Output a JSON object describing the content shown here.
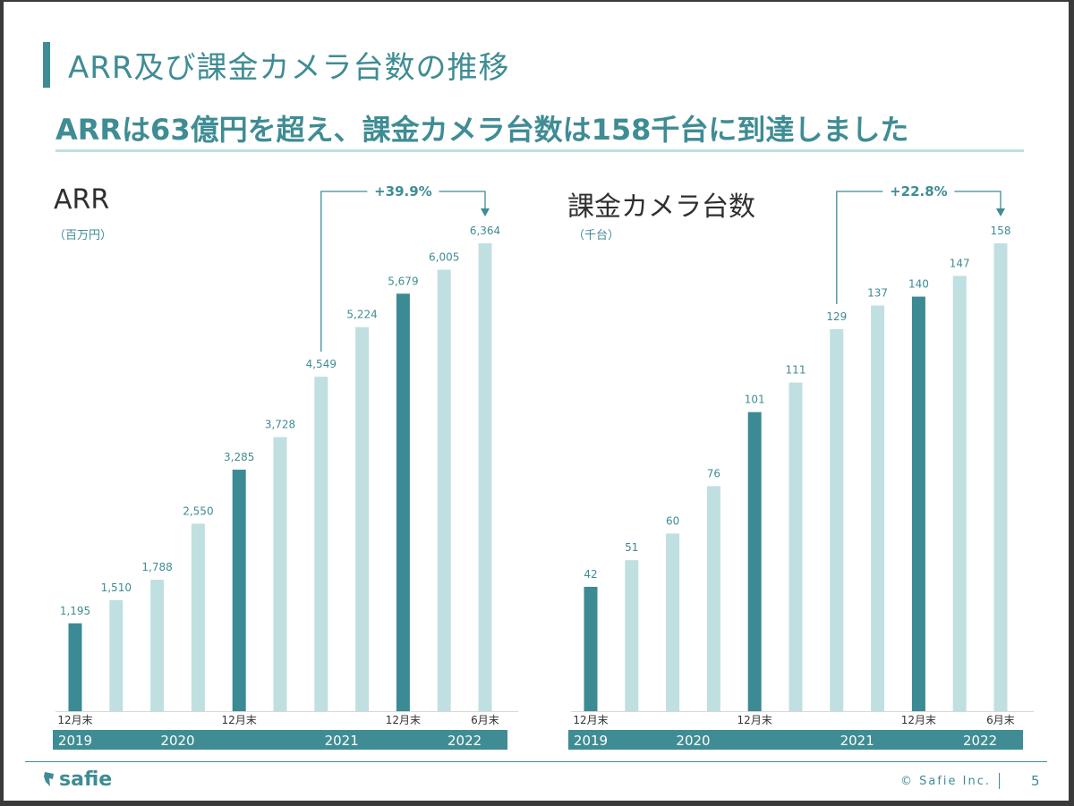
{
  "page": {
    "title": "ARR及び課金カメラ台数の推移",
    "subtitle": "ARRは63億円を超え、課金カメラ台数は158千台に到達しました",
    "footer": {
      "logo": "safie",
      "copyright": "© Safie Inc.",
      "page_number": "5"
    }
  },
  "colors": {
    "accent": "#3f8c94",
    "bar_dark": "#3b8a94",
    "bar_light": "#c0dfe1",
    "line": "#bfdfe2"
  },
  "chart_data": [
    {
      "type": "bar",
      "title": "ARR",
      "unit": "（百万円）",
      "ylim": [
        0,
        6364
      ],
      "values": [
        1195,
        1510,
        1788,
        2550,
        3285,
        3728,
        4549,
        5224,
        5679,
        6005,
        6364
      ],
      "value_labels": [
        "1,195",
        "1,510",
        "1,788",
        "2,550",
        "3,285",
        "3,728",
        "4,549",
        "5,224",
        "5,679",
        "6,005",
        "6,364"
      ],
      "highlight": [
        true,
        false,
        false,
        false,
        true,
        false,
        false,
        false,
        true,
        false,
        false
      ],
      "tick_labels": [
        "12月末",
        "",
        "",
        "",
        "12月末",
        "",
        "",
        "",
        "12月末",
        "",
        "6月末"
      ],
      "year_groups": [
        {
          "label": "2019",
          "start": 0,
          "end": 0
        },
        {
          "label": "2020",
          "start": 1,
          "end": 4
        },
        {
          "label": "2021",
          "start": 5,
          "end": 8
        },
        {
          "label": "2022",
          "start": 9,
          "end": 10
        }
      ],
      "growth": {
        "label": "+39.9%",
        "from": 6,
        "to": 10
      }
    },
    {
      "type": "bar",
      "title": "課金カメラ台数",
      "unit": "（千台）",
      "ylim": [
        0,
        158
      ],
      "values": [
        42,
        51,
        60,
        76,
        101,
        111,
        129,
        137,
        140,
        147,
        158
      ],
      "value_labels": [
        "42",
        "51",
        "60",
        "76",
        "101",
        "111",
        "129",
        "137",
        "140",
        "147",
        "158"
      ],
      "highlight": [
        true,
        false,
        false,
        false,
        true,
        false,
        false,
        false,
        true,
        false,
        false
      ],
      "tick_labels": [
        "12月末",
        "",
        "",
        "",
        "12月末",
        "",
        "",
        "",
        "12月末",
        "",
        "6月末"
      ],
      "year_groups": [
        {
          "label": "2019",
          "start": 0,
          "end": 0
        },
        {
          "label": "2020",
          "start": 1,
          "end": 4
        },
        {
          "label": "2021",
          "start": 5,
          "end": 8
        },
        {
          "label": "2022",
          "start": 9,
          "end": 10
        }
      ],
      "growth": {
        "label": "+22.8%",
        "from": 6,
        "to": 10
      }
    }
  ]
}
